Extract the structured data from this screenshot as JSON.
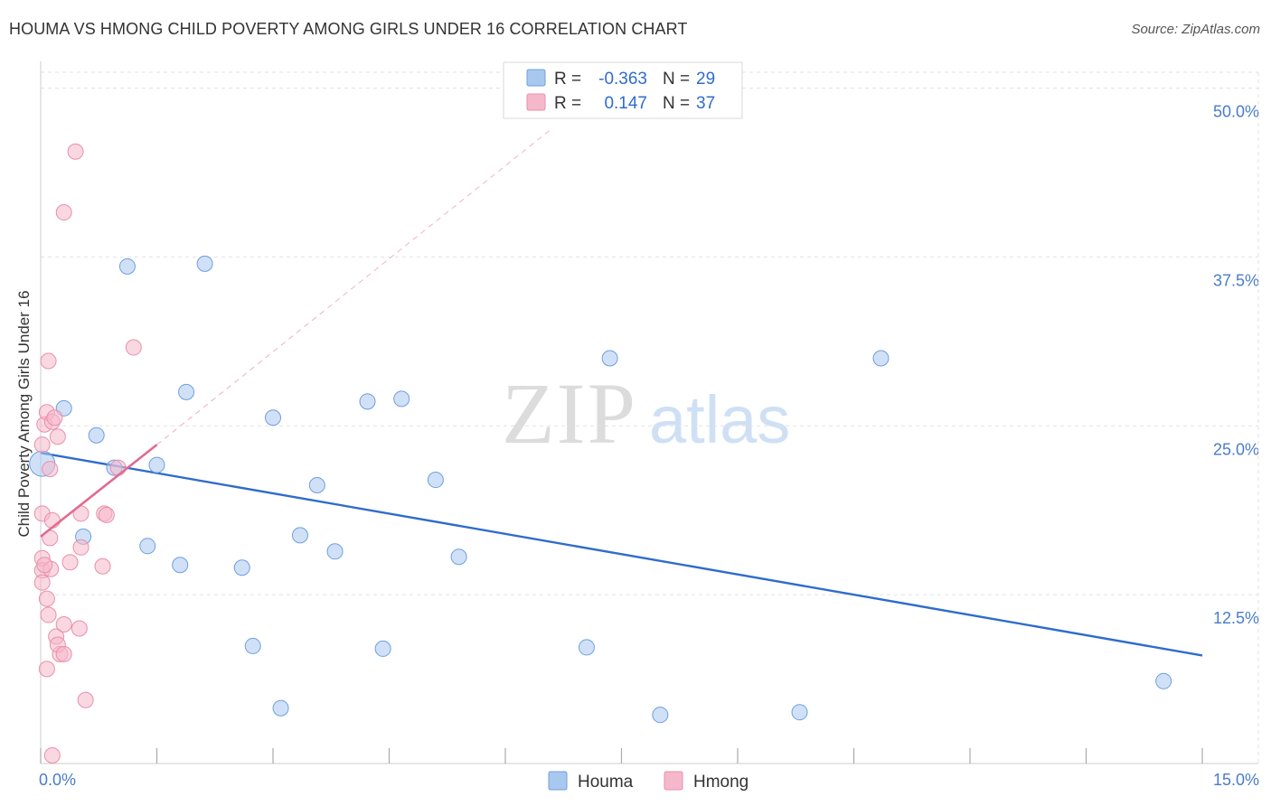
{
  "header": {
    "title": "HOUMA VS HMONG CHILD POVERTY AMONG GIRLS UNDER 16 CORRELATION CHART",
    "source": "Source: ZipAtlas.com"
  },
  "watermark": {
    "zip": "ZIP",
    "atlas": "atlas"
  },
  "legend": {
    "rows": [
      {
        "r_label": "R = ",
        "r_value": "-0.363",
        "n_label": "N = ",
        "n_value": "29",
        "color": "#a9c8f0"
      },
      {
        "r_label": "R = ",
        "r_value": "0.147",
        "n_label": "N = ",
        "n_value": "37",
        "color": "#f5b8cb"
      }
    ]
  },
  "bottom_legend": [
    {
      "label": "Houma",
      "color": "#a9c8f0"
    },
    {
      "label": "Hmong",
      "color": "#f5b8cb"
    }
  ],
  "chart_data": {
    "type": "scatter",
    "title": "HOUMA VS HMONG CHILD POVERTY AMONG GIRLS UNDER 16 CORRELATION CHART",
    "xlabel": "",
    "ylabel": "Child Poverty Among Girls Under 16",
    "xlim": [
      0,
      15
    ],
    "ylim": [
      0,
      50
    ],
    "x_tick_labels": [
      "0.0%",
      "15.0%"
    ],
    "y_ticks": [
      12.5,
      25.0,
      37.5,
      50.0
    ],
    "y_tick_labels": [
      "12.5%",
      "25.0%",
      "37.5%",
      "50.0%"
    ],
    "grid": true,
    "legend_position": "top-center",
    "series": [
      {
        "name": "Houma",
        "color": "#a9c8f0",
        "stroke": "#6f9fdc",
        "line_color": "#2f6ccc",
        "trend": {
          "x": [
            0,
            15
          ],
          "y": [
            23.0,
            8.0
          ]
        },
        "points": [
          {
            "x": 0.02,
            "y": 22.2
          },
          {
            "x": 0.3,
            "y": 26.3
          },
          {
            "x": 0.55,
            "y": 16.8
          },
          {
            "x": 0.72,
            "y": 24.3
          },
          {
            "x": 0.95,
            "y": 21.9
          },
          {
            "x": 1.12,
            "y": 36.8
          },
          {
            "x": 1.38,
            "y": 16.1
          },
          {
            "x": 1.5,
            "y": 22.1
          },
          {
            "x": 1.8,
            "y": 14.7
          },
          {
            "x": 1.88,
            "y": 27.5
          },
          {
            "x": 2.12,
            "y": 37.0
          },
          {
            "x": 2.6,
            "y": 14.5
          },
          {
            "x": 2.74,
            "y": 8.7
          },
          {
            "x": 3.0,
            "y": 25.6
          },
          {
            "x": 3.1,
            "y": 4.1
          },
          {
            "x": 3.35,
            "y": 16.9
          },
          {
            "x": 3.57,
            "y": 20.6
          },
          {
            "x": 3.8,
            "y": 15.7
          },
          {
            "x": 4.22,
            "y": 26.8
          },
          {
            "x": 4.42,
            "y": 8.5
          },
          {
            "x": 4.66,
            "y": 27.0
          },
          {
            "x": 5.1,
            "y": 21.0
          },
          {
            "x": 5.4,
            "y": 15.3
          },
          {
            "x": 7.05,
            "y": 8.6
          },
          {
            "x": 7.35,
            "y": 30.0
          },
          {
            "x": 8.0,
            "y": 3.6
          },
          {
            "x": 9.8,
            "y": 3.8
          },
          {
            "x": 10.85,
            "y": 30.0
          },
          {
            "x": 14.5,
            "y": 6.1
          }
        ]
      },
      {
        "name": "Hmong",
        "color": "#f5b8cb",
        "stroke": "#e98fab",
        "line_color": "#e26a90",
        "trend": {
          "x": [
            0,
            1.5
          ],
          "y": [
            16.8,
            23.6
          ]
        },
        "trend_dashed": {
          "x": [
            1.5,
            6.6
          ],
          "y": [
            23.6,
            47.0
          ]
        },
        "points": [
          {
            "x": 0.02,
            "y": 23.6
          },
          {
            "x": 0.02,
            "y": 18.5
          },
          {
            "x": 0.02,
            "y": 15.2
          },
          {
            "x": 0.02,
            "y": 14.3
          },
          {
            "x": 0.02,
            "y": 13.4
          },
          {
            "x": 0.05,
            "y": 25.1
          },
          {
            "x": 0.08,
            "y": 26.0
          },
          {
            "x": 0.08,
            "y": 12.2
          },
          {
            "x": 0.08,
            "y": 7.0
          },
          {
            "x": 0.1,
            "y": 11.0
          },
          {
            "x": 0.1,
            "y": 29.8
          },
          {
            "x": 0.12,
            "y": 21.8
          },
          {
            "x": 0.12,
            "y": 16.7
          },
          {
            "x": 0.13,
            "y": 14.4
          },
          {
            "x": 0.15,
            "y": 0.6
          },
          {
            "x": 0.15,
            "y": 18.0
          },
          {
            "x": 0.15,
            "y": 25.3
          },
          {
            "x": 0.18,
            "y": 25.6
          },
          {
            "x": 0.2,
            "y": 9.4
          },
          {
            "x": 0.22,
            "y": 24.2
          },
          {
            "x": 0.25,
            "y": 8.1
          },
          {
            "x": 0.22,
            "y": 8.8
          },
          {
            "x": 0.3,
            "y": 10.3
          },
          {
            "x": 0.3,
            "y": 8.1
          },
          {
            "x": 0.3,
            "y": 40.8
          },
          {
            "x": 0.38,
            "y": 14.9
          },
          {
            "x": 0.45,
            "y": 45.3
          },
          {
            "x": 0.5,
            "y": 10.0
          },
          {
            "x": 0.52,
            "y": 18.5
          },
          {
            "x": 0.52,
            "y": 16.0
          },
          {
            "x": 0.58,
            "y": 4.7
          },
          {
            "x": 0.8,
            "y": 14.6
          },
          {
            "x": 0.82,
            "y": 18.5
          },
          {
            "x": 1.2,
            "y": 30.8
          },
          {
            "x": 1.0,
            "y": 21.9
          },
          {
            "x": 0.85,
            "y": 18.4
          },
          {
            "x": 0.05,
            "y": 14.7
          }
        ]
      }
    ]
  }
}
